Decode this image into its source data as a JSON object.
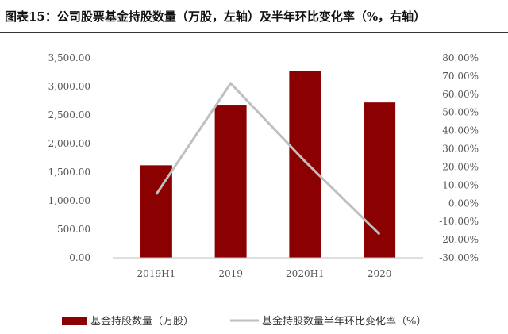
{
  "figure_title": "图表15：公司股票基金持股数量（万股，左轴）及半年环比变化率（%，右轴）",
  "chart_data": {
    "type": "bar",
    "title": "图表15：公司股票基金持股数量（万股，左轴）及半年环比变化率（%，右轴）",
    "categories": [
      "2019H1",
      "2019",
      "2020H1",
      "2020"
    ],
    "series": [
      {
        "name": "基金持股数量（万股）",
        "type": "bar",
        "axis": "left",
        "color": "#8b0000",
        "values": [
          1620,
          2680,
          3270,
          2720
        ]
      },
      {
        "name": "基金持股数量半年环比变化率（%）",
        "type": "line",
        "axis": "right",
        "color": "#bfbfbf",
        "values": [
          5.0,
          66.0,
          23.0,
          -17.0
        ]
      }
    ],
    "left_axis": {
      "ylim": [
        0,
        3500
      ],
      "ticks": [
        0,
        500,
        1000,
        1500,
        2000,
        2500,
        3000,
        3500
      ],
      "tick_labels": [
        "0.00",
        "500.00",
        "1,000.00",
        "1,500.00",
        "2,000.00",
        "2,500.00",
        "3,000.00",
        "3,500.00"
      ]
    },
    "right_axis": {
      "ylim": [
        -30,
        80
      ],
      "ticks": [
        -30,
        -20,
        -10,
        0,
        10,
        20,
        30,
        40,
        50,
        60,
        70,
        80
      ],
      "tick_labels": [
        "-30.00%",
        "-20.00%",
        "-10.00%",
        "0.00%",
        "10.00%",
        "20.00%",
        "30.00%",
        "40.00%",
        "50.00%",
        "60.00%",
        "70.00%",
        "80.00%"
      ]
    },
    "grid": false,
    "legend_position": "bottom"
  }
}
